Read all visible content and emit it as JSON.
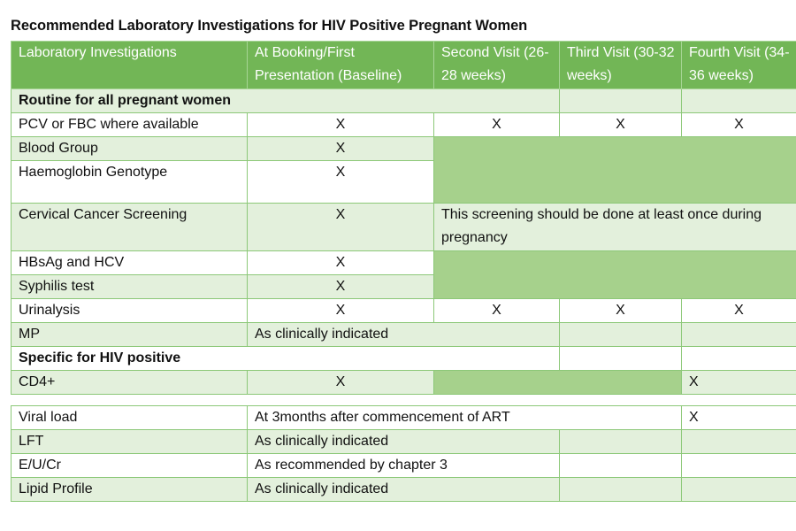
{
  "title": "Recommended Laboratory Investigations for HIV Positive Pregnant Women",
  "headers": {
    "col1": "Laboratory Investigations",
    "col2": "At Booking/First Presentation (Baseline)",
    "col3": "Second Visit (26-28 weeks)",
    "col4": "Third Visit (30-32 weeks)",
    "col5": "Fourth Visit (34-36 weeks)"
  },
  "sections": {
    "routine": "Routine for all pregnant women",
    "hiv": "Specific for HIV positive"
  },
  "mark": "X",
  "rows": {
    "pcv": "PCV or FBC where available",
    "blood_group": "Blood Group",
    "genotype": "Haemoglobin Genotype",
    "cervical": "Cervical Cancer Screening",
    "cervical_note": "This screening should be done at least once during pregnancy",
    "hbsag": "HBsAg and HCV",
    "syphilis": "Syphilis test",
    "urinalysis": "Urinalysis",
    "mp": "MP",
    "mp_note": "As clinically indicated",
    "cd4": "CD4+",
    "viral": "Viral load",
    "viral_note": "At 3months after commencement of ART",
    "lft": "LFT",
    "lft_note": "As clinically indicated",
    "eucr": "E/U/Cr",
    "eucr_note": "As recommended by chapter 3",
    "lipid": "Lipid Profile",
    "lipid_note": "As clinically indicated"
  }
}
